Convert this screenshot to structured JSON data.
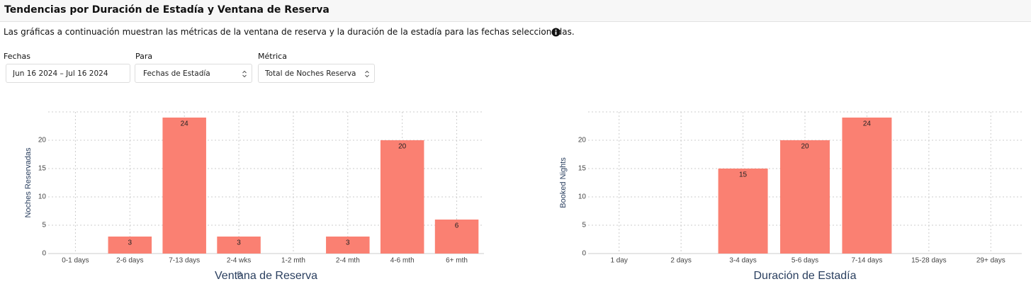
{
  "header": {
    "title": "Tendencias por Duración de Estadía y Ventana de Reserva"
  },
  "description": "Las gráficas a continuación muestran las métricas de la ventana de reserva y la duración de la estadía para las fechas seleccionadas.",
  "filters": [
    {
      "label": "Fechas",
      "value": "Jun 16 2024 – Jul 16 2024"
    },
    {
      "label": "Para",
      "value": "Fechas de Estadía"
    },
    {
      "label": "Métrica",
      "value": "Total de Noches Reservadas"
    }
  ],
  "chart_data": [
    {
      "type": "bar",
      "x_label": "Ventana de Reserva",
      "y_label": "Noches Reservadas",
      "annotation": "B",
      "categories": [
        "0-1 days",
        "2-6 days",
        "7-13 days",
        "2-4 wks",
        "1-2 mth",
        "2-4 mth",
        "4-6 mth",
        "6+ mth"
      ],
      "values": [
        0,
        3,
        24,
        3,
        0,
        3,
        20,
        6
      ],
      "color": "#fa8072",
      "ylim": [
        0,
        25
      ],
      "yticks": [
        0,
        5,
        10,
        15,
        20
      ],
      "grid": true
    },
    {
      "type": "bar",
      "x_label": "Duración de Estadía",
      "y_label": "Booked Nights",
      "categories": [
        "1 day",
        "2 days",
        "3-4 days",
        "5-6 days",
        "7-14 days",
        "15-28 days",
        "29+ days"
      ],
      "values": [
        0,
        0,
        15,
        20,
        24,
        0,
        0
      ],
      "color": "#fa8072",
      "ylim": [
        0,
        25
      ],
      "yticks": [
        0,
        5,
        10,
        15,
        20
      ],
      "grid": true
    }
  ]
}
